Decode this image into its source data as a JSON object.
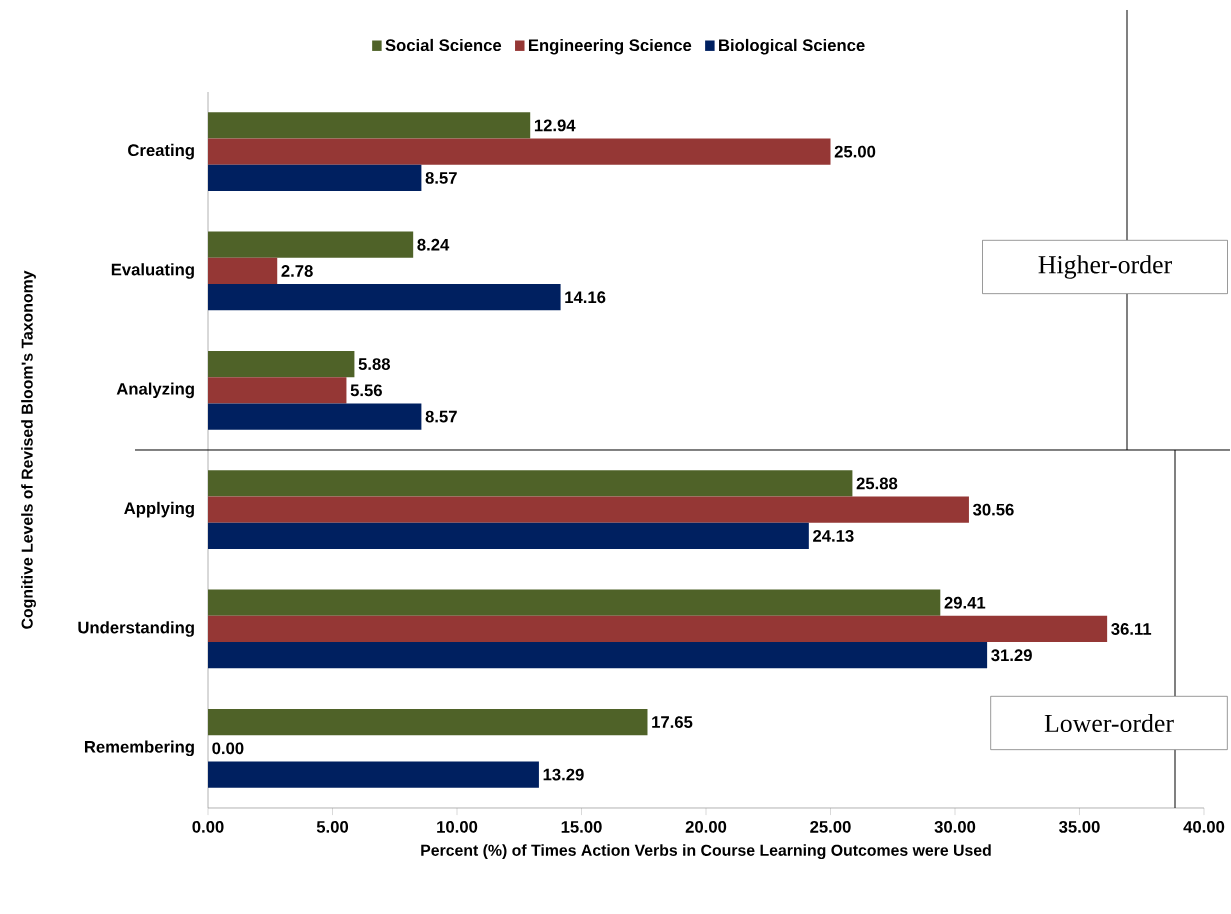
{
  "chart_data": {
    "type": "bar",
    "orientation": "horizontal",
    "categories": [
      "Creating",
      "Evaluating",
      "Analyzing",
      "Applying",
      "Understanding",
      "Remembering"
    ],
    "series": [
      {
        "name": "Social Science",
        "color": "#4f6228",
        "values": [
          12.94,
          8.24,
          5.88,
          25.88,
          29.41,
          17.65
        ],
        "value_labels": [
          "12.94",
          "8.24",
          "5.88",
          "25.88",
          "29.41",
          "17.65"
        ]
      },
      {
        "name": "Engineering Science",
        "color": "#953735",
        "values": [
          25.0,
          2.78,
          5.56,
          30.56,
          36.11,
          0.0
        ],
        "value_labels": [
          "25.00",
          "2.78",
          "5.56",
          "30.56",
          "36.11",
          "0.00"
        ]
      },
      {
        "name": "Biological Science",
        "color": "#002060",
        "values": [
          8.57,
          14.16,
          8.57,
          24.13,
          31.29,
          13.29
        ],
        "value_labels": [
          "8.57",
          "14.16",
          "8.57",
          "24.13",
          "31.29",
          "13.29"
        ]
      }
    ],
    "xlim": [
      0,
      40
    ],
    "xticks": [
      {
        "value": 0,
        "label": "0.00"
      },
      {
        "value": 5,
        "label": "5.00"
      },
      {
        "value": 10,
        "label": "10.00"
      },
      {
        "value": 15,
        "label": "15.00"
      },
      {
        "value": 20,
        "label": "20.00"
      },
      {
        "value": 25,
        "label": "25.00"
      },
      {
        "value": 30,
        "label": "30.00"
      },
      {
        "value": 35,
        "label": "35.00"
      },
      {
        "value": 40,
        "label": "40.00"
      }
    ],
    "xlabel": "Percent (%) of Times  Action  Verbs in Course Learning Outcomes  were  Used",
    "ylabel": "Cognitive Levels of Revised Bloom's Taxonomy",
    "legend": "top",
    "grid": false,
    "annotations": [
      "Higher-order",
      "Lower-order"
    ]
  }
}
